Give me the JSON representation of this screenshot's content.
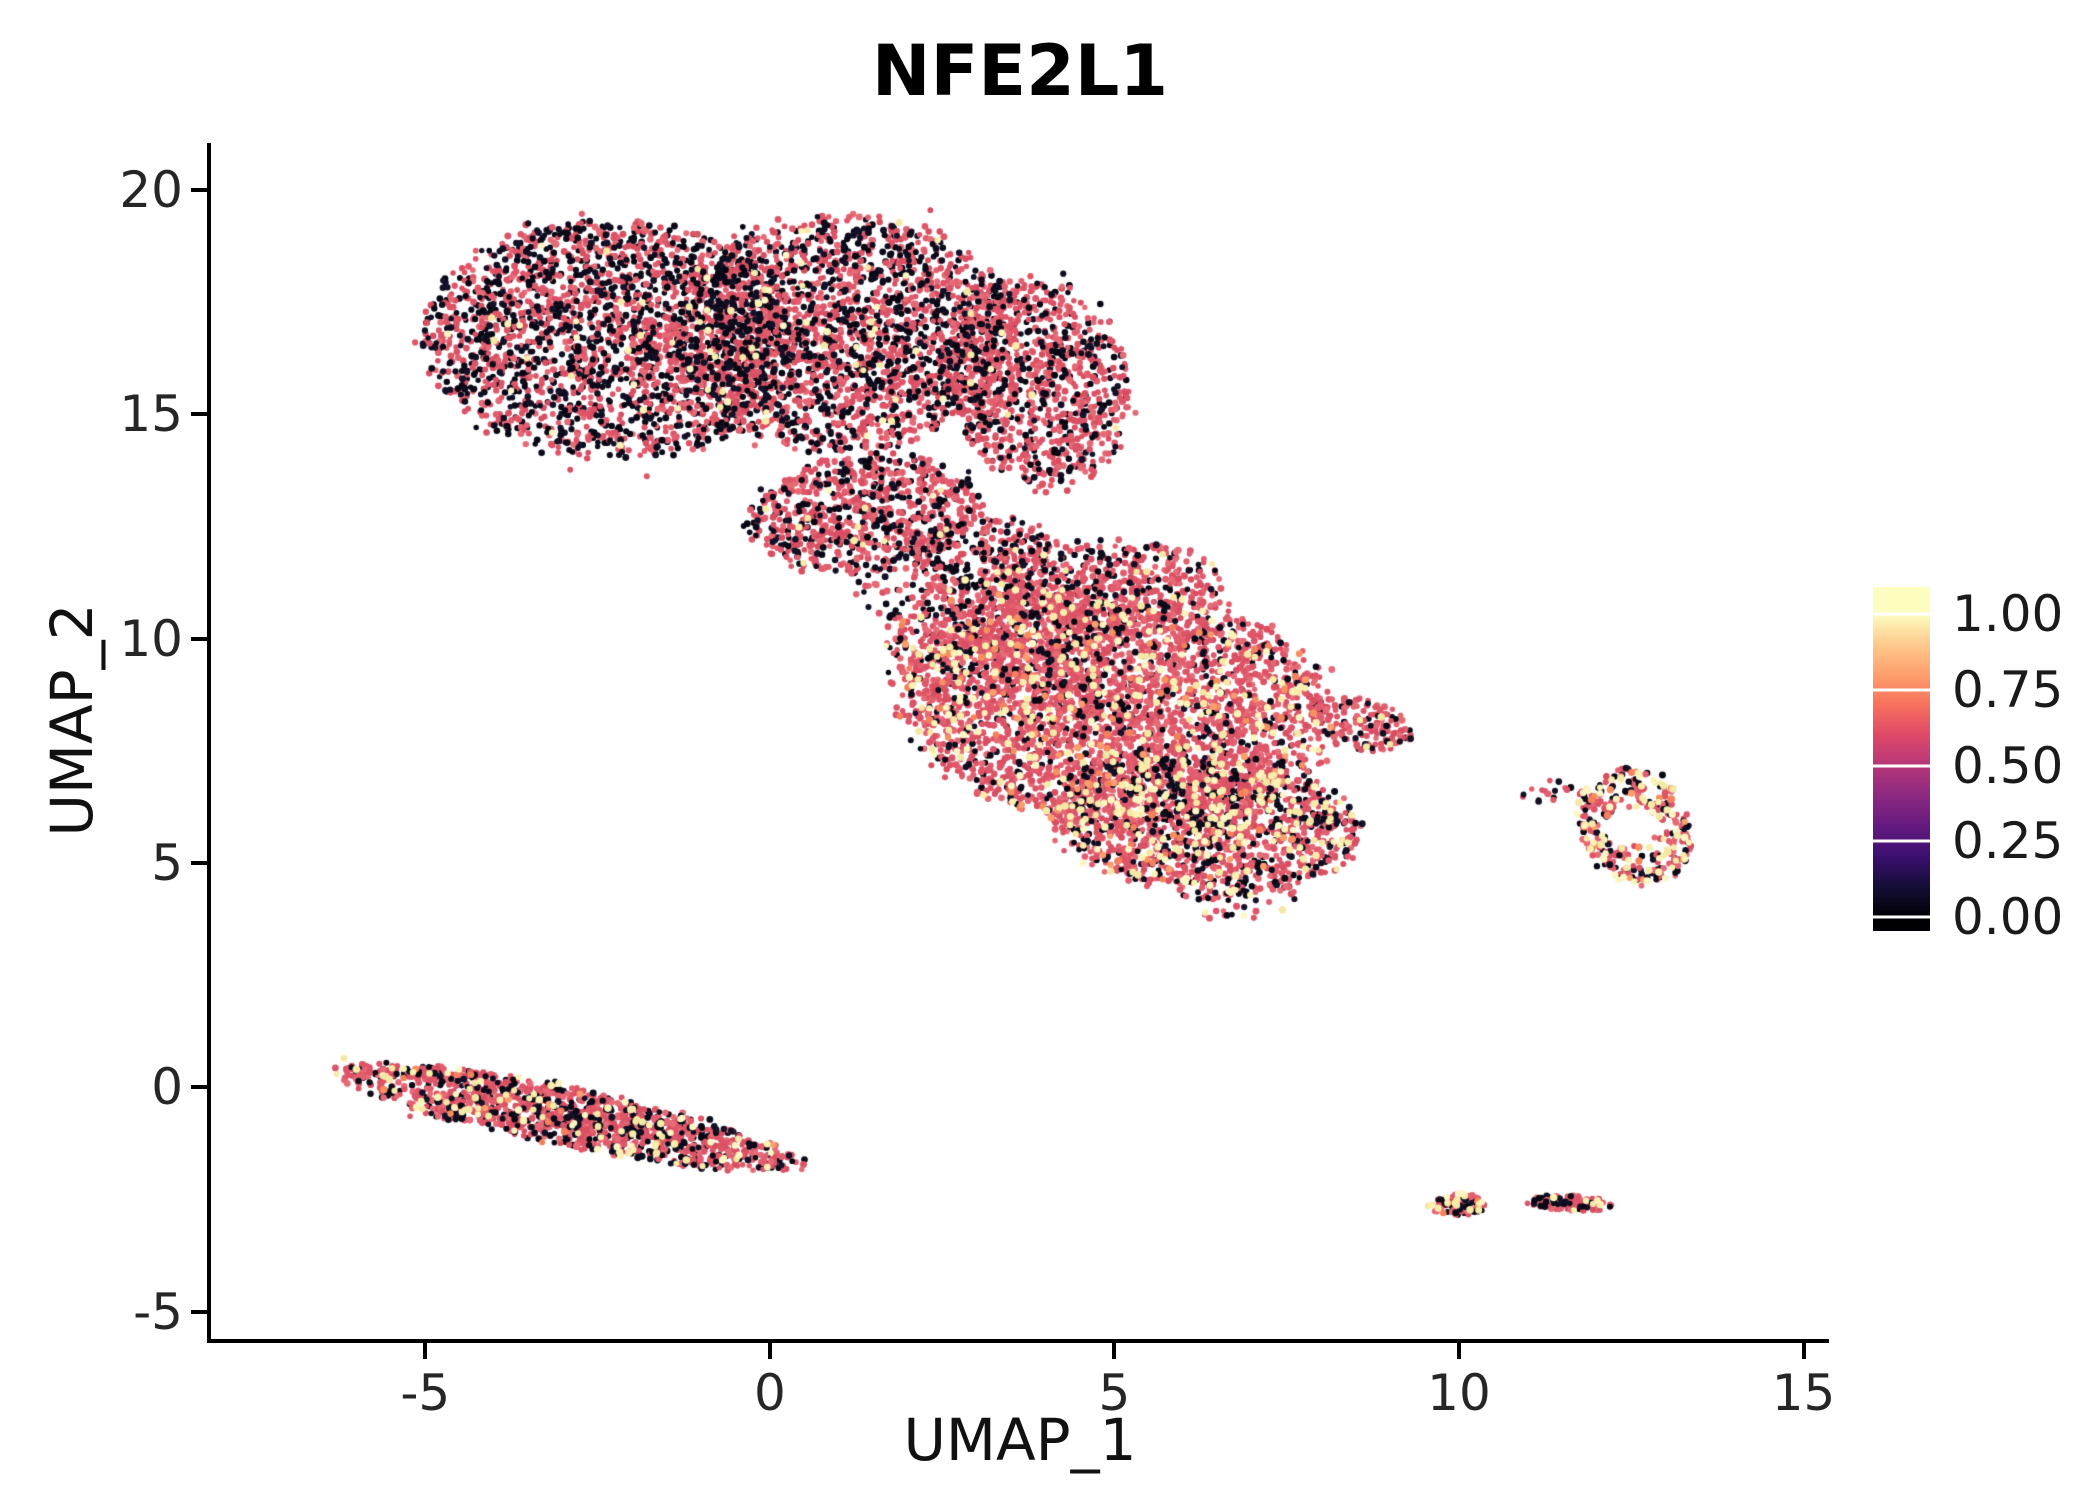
{
  "title": "NFE2L1",
  "axes": {
    "x": {
      "label": "UMAP_1",
      "ticks": [
        -5,
        0,
        5,
        10,
        15
      ]
    },
    "y": {
      "label": "UMAP_2",
      "ticks": [
        -5,
        0,
        5,
        10,
        15,
        20
      ]
    }
  },
  "colorbar": {
    "ticks": [
      {
        "label": "1.00",
        "value": 1.0
      },
      {
        "label": "0.75",
        "value": 0.75
      },
      {
        "label": "0.50",
        "value": 0.5
      },
      {
        "label": "0.25",
        "value": 0.25
      },
      {
        "label": "0.00",
        "value": 0.0
      }
    ],
    "colormap": [
      "#000004",
      "#140E36",
      "#3B0F70",
      "#641A80",
      "#8C2981",
      "#B63679",
      "#DE4968",
      "#F7705C",
      "#FE9F6D",
      "#FEC98D",
      "#FCFDBF"
    ]
  },
  "chart_data": {
    "type": "scatter",
    "title": "NFE2L1",
    "xlabel": "UMAP_1",
    "ylabel": "UMAP_2",
    "xlim": [
      -8.11,
      15.37
    ],
    "ylim": [
      -5.61,
      21.05
    ],
    "legend": "continuous expression scale 0.00-1.00, magma colormap, legend at right",
    "grid": false,
    "seed": 42,
    "n_points_total": 14788,
    "value_map": {
      "black": 0.0,
      "pink": 0.7,
      "orange": 0.85,
      "yellow": 1.0
    },
    "point_style": {
      "radius_px": 3,
      "palettes": {
        "pink": [
          "#DF5466",
          "#E25E6E",
          "#D94E60",
          "#E66A76",
          "#DB5468"
        ],
        "black": [
          "#0B0A18",
          "#0E0D1E",
          "#070612",
          "#131127"
        ],
        "orange": [
          "#F78F5E",
          "#FB9D6C",
          "#F5815C"
        ],
        "yellow": [
          "#FBF2B4",
          "#F8ECA9",
          "#FDF6C3",
          "#F5E8A4"
        ]
      }
    },
    "clusters": [
      {
        "name": "upper-blob-left",
        "n": 2400,
        "cx": -2.3,
        "cy": 16.7,
        "rx": 2.7,
        "ry": 2.6,
        "rot": -10,
        "weights": {
          "pink": 0.53,
          "black": 0.46,
          "yellow": 0.01
        }
      },
      {
        "name": "upper-blob-right",
        "n": 2300,
        "cx": 1.0,
        "cy": 16.8,
        "rx": 2.5,
        "ry": 2.6,
        "rot": 0,
        "weights": {
          "pink": 0.6,
          "black": 0.38,
          "yellow": 0.02
        }
      },
      {
        "name": "upper-blob-east",
        "n": 1000,
        "cx": 3.9,
        "cy": 15.7,
        "rx": 1.3,
        "ry": 2.3,
        "rot": 8,
        "weights": {
          "pink": 0.69,
          "black": 0.3,
          "yellow": 0.01
        }
      },
      {
        "name": "upper-neck",
        "n": 800,
        "cx": 1.4,
        "cy": 12.8,
        "rx": 1.7,
        "ry": 1.3,
        "rot": 20,
        "weights": {
          "pink": 0.68,
          "black": 0.31,
          "yellow": 0.01
        }
      },
      {
        "name": "bridge",
        "n": 260,
        "cx": 3.1,
        "cy": 11.9,
        "rx": 1.1,
        "ry": 0.8,
        "rot": 0,
        "weights": {
          "pink": 0.62,
          "black": 0.37,
          "yellow": 0.01
        }
      },
      {
        "name": "bridge-sparse",
        "n": 60,
        "cx": 2.1,
        "cy": 10.9,
        "rx": 0.9,
        "ry": 0.6,
        "rot": 0,
        "weights": {
          "pink": 0.55,
          "black": 0.45
        }
      },
      {
        "name": "central-main",
        "n": 3200,
        "cx": 5.0,
        "cy": 8.5,
        "rx": 3.1,
        "ry": 2.6,
        "rot": -15,
        "weights": {
          "pink": 0.73,
          "black": 0.17,
          "orange": 0.03,
          "yellow": 0.07
        }
      },
      {
        "name": "central-south",
        "n": 1400,
        "cx": 6.3,
        "cy": 5.9,
        "rx": 2.2,
        "ry": 1.5,
        "rot": -10,
        "weights": {
          "pink": 0.58,
          "black": 0.28,
          "orange": 0.03,
          "yellow": 0.11
        }
      },
      {
        "name": "central-northwest",
        "n": 700,
        "cx": 3.4,
        "cy": 9.9,
        "rx": 1.7,
        "ry": 1.6,
        "rot": 0,
        "weights": {
          "pink": 0.72,
          "black": 0.22,
          "orange": 0.02,
          "yellow": 0.04
        }
      },
      {
        "name": "central-north",
        "n": 450,
        "cx": 4.9,
        "cy": 11.2,
        "rx": 1.7,
        "ry": 1.0,
        "rot": 0,
        "weights": {
          "pink": 0.72,
          "black": 0.26,
          "yellow": 0.02
        }
      },
      {
        "name": "central-east-tip",
        "n": 160,
        "cx": 8.6,
        "cy": 8.1,
        "rx": 0.8,
        "ry": 0.55,
        "rot": -30,
        "weights": {
          "pink": 0.72,
          "black": 0.26,
          "yellow": 0.02
        }
      },
      {
        "name": "central-south-strays",
        "n": 50,
        "cx": 6.9,
        "cy": 4.2,
        "rx": 0.9,
        "ry": 0.5,
        "rot": 0,
        "weights": {
          "pink": 0.6,
          "black": 0.3,
          "yellow": 0.1
        }
      },
      {
        "name": "right-island",
        "n": 330,
        "cx": 12.55,
        "cy": 5.8,
        "rx": 0.85,
        "ry": 1.3,
        "rot": 10,
        "hole": 0.35,
        "weights": {
          "pink": 0.46,
          "black": 0.28,
          "orange": 0.06,
          "yellow": 0.2
        }
      },
      {
        "name": "right-island-strays",
        "n": 18,
        "cx": 11.35,
        "cy": 6.6,
        "rx": 0.45,
        "ry": 0.25,
        "rot": 0,
        "weights": {
          "pink": 0.5,
          "black": 0.5
        }
      },
      {
        "name": "lower-left-streak",
        "n": 1450,
        "cx": -2.95,
        "cy": -0.65,
        "rx": 3.45,
        "ry": 0.6,
        "rot": -18,
        "weights": {
          "pink": 0.63,
          "black": 0.29,
          "orange": 0.02,
          "yellow": 0.06
        }
      },
      {
        "name": "bottom-island-west",
        "n": 90,
        "cx": 10.0,
        "cy": -2.62,
        "rx": 0.38,
        "ry": 0.25,
        "rot": 0,
        "weights": {
          "pink": 0.5,
          "black": 0.3,
          "orange": 0.05,
          "yellow": 0.15
        }
      },
      {
        "name": "bottom-island-east",
        "n": 120,
        "cx": 11.6,
        "cy": -2.58,
        "rx": 0.62,
        "ry": 0.17,
        "rot": -5,
        "weights": {
          "pink": 0.55,
          "black": 0.35,
          "yellow": 0.1
        }
      }
    ]
  }
}
